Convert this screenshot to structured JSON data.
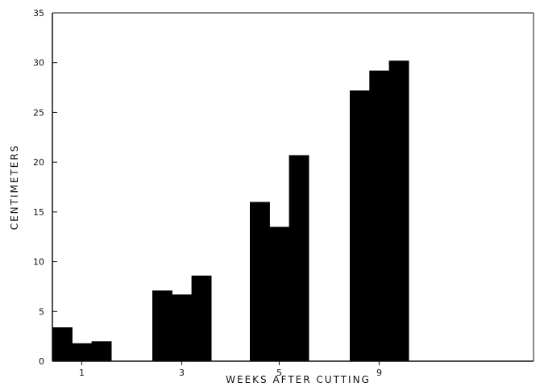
{
  "chart_data": {
    "type": "bar",
    "title": "",
    "xlabel": "WEEKS AFTER CUTTING",
    "ylabel": "CENTIMETERS",
    "ylim": [
      0,
      35
    ],
    "yticks": [
      0,
      5,
      10,
      15,
      20,
      25,
      30,
      35
    ],
    "grid": false,
    "legend": "none",
    "bar_color": "#000000",
    "categories": [
      "1",
      "3",
      "5",
      "9"
    ],
    "series": [
      {
        "values": [
          3.4,
          7.1,
          16.0,
          27.2
        ]
      },
      {
        "values": [
          1.8,
          6.7,
          13.5,
          29.2
        ]
      },
      {
        "values": [
          2.0,
          8.6,
          20.7,
          30.2
        ]
      }
    ]
  }
}
